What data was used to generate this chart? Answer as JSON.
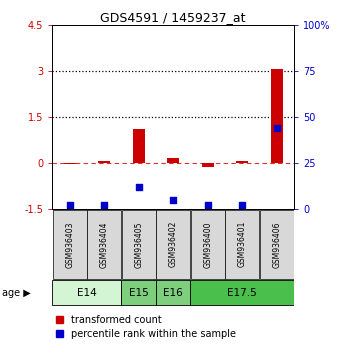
{
  "title": "GDS4591 / 1459237_at",
  "samples": [
    "GSM936403",
    "GSM936404",
    "GSM936405",
    "GSM936402",
    "GSM936400",
    "GSM936401",
    "GSM936406"
  ],
  "red_values": [
    -0.05,
    0.07,
    1.1,
    0.15,
    -0.12,
    0.07,
    3.05
  ],
  "blue_percentile": [
    2,
    2,
    12,
    5,
    2,
    2,
    44
  ],
  "ylim_left": [
    -1.5,
    4.5
  ],
  "ylim_right": [
    0,
    100
  ],
  "yticks_left": [
    -1.5,
    0.0,
    1.5,
    3.0,
    4.5
  ],
  "ytick_labels_left": [
    "-1.5",
    "0",
    "1.5",
    "3",
    "4.5"
  ],
  "yticks_right": [
    0,
    25,
    50,
    75,
    100
  ],
  "ytick_labels_right": [
    "0",
    "25",
    "50",
    "75",
    "100%"
  ],
  "hlines_dotted": [
    1.5,
    3.0
  ],
  "hline_dashed_red": 0.0,
  "age_groups": [
    {
      "label": "E14",
      "start": 0,
      "end": 2,
      "color": "#d4f5d4"
    },
    {
      "label": "E15",
      "start": 2,
      "end": 3,
      "color": "#7dce7d"
    },
    {
      "label": "E16",
      "start": 3,
      "end": 4,
      "color": "#7dce7d"
    },
    {
      "label": "E17.5",
      "start": 4,
      "end": 7,
      "color": "#4bbf4b"
    }
  ],
  "red_color": "#cc0000",
  "blue_color": "#0000cc",
  "legend_red_label": "transformed count",
  "legend_blue_label": "percentile rank within the sample",
  "background_color": "#d8d8d8"
}
